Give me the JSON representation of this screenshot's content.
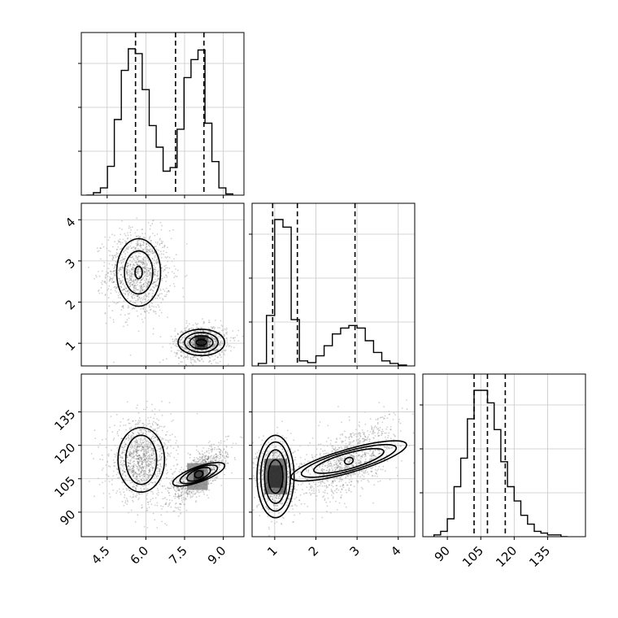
{
  "chart_data": {
    "type": "corner",
    "grid": true,
    "parameters": [
      {
        "range": [
          3.5,
          9.8
        ],
        "ticks": [
          4.5,
          6.0,
          7.5,
          9.0
        ],
        "tick_labels": [
          "4.5",
          "6.0",
          "7.5",
          "9.0"
        ],
        "quantiles": [
          5.6,
          7.15,
          8.25
        ],
        "hist": {
          "edges": [
            3.7,
            3.97,
            4.24,
            4.51,
            4.78,
            5.05,
            5.32,
            5.59,
            5.86,
            6.13,
            6.4,
            6.67,
            6.94,
            7.21,
            7.48,
            7.75,
            8.02,
            8.29,
            8.56,
            8.83,
            9.1,
            9.37
          ],
          "counts": [
            0,
            2,
            6,
            24,
            63,
            104,
            122,
            118,
            88,
            58,
            40,
            20,
            23,
            55,
            98,
            113,
            121,
            60,
            28,
            6,
            1
          ]
        }
      },
      {
        "range": [
          0.45,
          4.4
        ],
        "ticks": [
          1,
          2,
          3,
          4
        ],
        "tick_labels": [
          "1",
          "2",
          "3",
          "4"
        ],
        "quantiles": [
          0.95,
          1.55,
          2.95
        ],
        "hist": {
          "edges": [
            0.6,
            0.8,
            1.0,
            1.2,
            1.4,
            1.6,
            1.8,
            2.0,
            2.2,
            2.4,
            2.6,
            2.8,
            3.0,
            3.2,
            3.4,
            3.6,
            3.8,
            4.0,
            4.2
          ],
          "counts": [
            3,
            60,
            174,
            165,
            55,
            6,
            4,
            12,
            24,
            38,
            45,
            48,
            45,
            30,
            16,
            6,
            3,
            1
          ]
        }
      },
      {
        "range": [
          79,
          152
        ],
        "ticks": [
          90,
          105,
          120,
          135
        ],
        "tick_labels": [
          "90",
          "105",
          "120",
          "135"
        ],
        "quantiles": [
          102,
          108,
          116
        ],
        "hist": {
          "edges": [
            84,
            87,
            90,
            93,
            96,
            99,
            102,
            105,
            108,
            111,
            114,
            117,
            120,
            123,
            126,
            129,
            132,
            135,
            138,
            141,
            144
          ],
          "counts": [
            1,
            3,
            10,
            28,
            44,
            66,
            82,
            82,
            75,
            60,
            42,
            28,
            20,
            12,
            7,
            3,
            2,
            1,
            1,
            0
          ]
        }
      }
    ],
    "pairs": [
      {
        "x_param": 0,
        "y_param": 1,
        "modes": [
          {
            "mean": [
              5.72,
              2.72
            ],
            "sd": [
              0.62,
              0.52
            ],
            "rho": 0.0,
            "weight": 0.55
          },
          {
            "mean": [
              8.15,
              1.02
            ],
            "sd": [
              0.5,
              0.2
            ],
            "rho": 0.1,
            "weight": 0.45
          }
        ],
        "contours": [
          {
            "mode": 0,
            "rx": [
              0.85,
              0.55,
              0.14
            ],
            "ry": [
              0.82,
              0.52,
              0.15
            ]
          },
          {
            "mode": 1,
            "rx": [
              0.9,
              0.65,
              0.45,
              0.2
            ],
            "ry": [
              0.32,
              0.24,
              0.16,
              0.07
            ]
          }
        ],
        "density": [
          {
            "x": [
              7.9,
              8.4
            ],
            "y": [
              0.85,
              1.2
            ],
            "shade": 0.85
          },
          {
            "x": [
              8.0,
              8.3
            ],
            "y": [
              0.9,
              1.15
            ],
            "shade": 1.0
          }
        ]
      },
      {
        "x_param": 0,
        "y_param": 2,
        "modes": [
          {
            "mean": [
              5.82,
              113.5
            ],
            "sd": [
              0.6,
              8.8
            ],
            "rho": 0.05,
            "weight": 0.55
          },
          {
            "mean": [
              8.05,
              107.0
            ],
            "sd": [
              0.55,
              6.5
            ],
            "rho": 0.75,
            "weight": 0.45
          }
        ],
        "contours": [
          {
            "mode": 0,
            "rx": [
              0.9,
              0.6
            ],
            "ry": [
              14.5,
              11.0
            ]
          },
          {
            "mode": 1,
            "rx": [
              1.0,
              0.72,
              0.45,
              0.15
            ],
            "ry": [
              4.2,
              3.2,
              2.2,
              0.8
            ]
          }
        ],
        "density": [
          {
            "x": [
              7.6,
              8.4
            ],
            "y": [
              100,
              112
            ],
            "shade": 0.55
          },
          {
            "x": [
              7.85,
              8.25
            ],
            "y": [
              104,
              109
            ],
            "shade": 0.9
          }
        ]
      },
      {
        "x_param": 1,
        "y_param": 2,
        "modes": [
          {
            "mean": [
              1.02,
              106.0
            ],
            "sd": [
              0.22,
              7.5
            ],
            "rho": 0.0,
            "weight": 0.5
          },
          {
            "mean": [
              2.8,
              113.0
            ],
            "sd": [
              0.6,
              8.8
            ],
            "rho": 0.6,
            "weight": 0.5
          }
        ],
        "contours": [
          {
            "mode": 0,
            "rx": [
              0.45,
              0.36,
              0.27,
              0.18
            ],
            "ry": [
              18.5,
              15.5,
              12.0,
              7.5
            ]
          },
          {
            "mode": 1,
            "rx": [
              1.4,
              1.15,
              0.85,
              0.1
            ],
            "ry": [
              7.5,
              6.0,
              4.4,
              0.7
            ]
          }
        ],
        "density": [
          {
            "x": [
              0.75,
              1.3
            ],
            "y": [
              98,
              114
            ],
            "shade": 0.7
          },
          {
            "x": [
              0.85,
              1.2
            ],
            "y": [
              101,
              111
            ],
            "shade": 0.95
          }
        ]
      }
    ]
  }
}
